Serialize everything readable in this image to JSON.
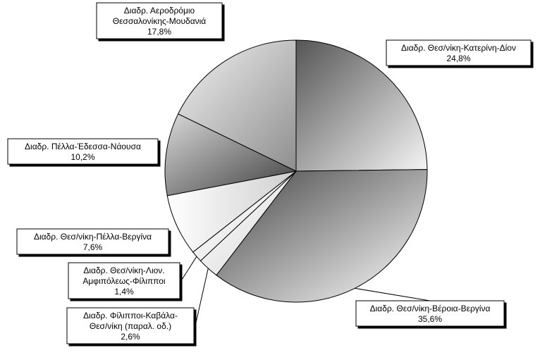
{
  "chart_data": {
    "type": "pie",
    "title": "",
    "slices": [
      {
        "label": "Διαδρ. Θεσ/νίκη-Κατερίνη-Δίον",
        "value": 24.8,
        "value_label": "24,8%"
      },
      {
        "label": "Διαδρ. Θεσ/νίκη-Βέροια-Βεργίνα",
        "value": 35.6,
        "value_label": "35,6%"
      },
      {
        "label": "Διαδρ. Φίλιπποι-Καβάλα-Θεσ/νίκη (παραλ. οδ.)",
        "value": 2.6,
        "value_label": "2,6%"
      },
      {
        "label": "Διαδρ. Θεσ/νίκη-Λιον. Αμφιπόλεως-Φίλιπποι",
        "value": 1.4,
        "value_label": "1,4%"
      },
      {
        "label": "Διαδρ. Θεσ/νίκη-Πέλλα-Βεργίνα",
        "value": 7.6,
        "value_label": "7,6%"
      },
      {
        "label": "Διαδρ. Πέλλα-Έδεσσα-Νάουσα",
        "value": 10.2,
        "value_label": "10,2%"
      },
      {
        "label": "Διαδρ. Αεροδρόμιο Θεσσαλονίκης-Μουδανιά",
        "value": 17.8,
        "value_label": "17,8%"
      }
    ],
    "label_lines": [
      [
        "Διαδρ. Θεσ/νίκη-Κατερίνη-Δίον",
        "24,8%"
      ],
      [
        "Διαδρ. Θεσ/νίκη-Βέροια-Βεργίνα",
        "35,6%"
      ],
      [
        "Διαδρ. Φίλιπποι-Καβάλα-",
        "Θεσ/νίκη (παραλ. οδ.)",
        "2,6%"
      ],
      [
        "Διαδρ. Θεσ/νίκη-Λιον.",
        "Αμφιπόλεως-Φίλιπποι",
        "1,4%"
      ],
      [
        "Διαδρ. Θεσ/νίκη-Πέλλα-Βεργίνα",
        "7,6%"
      ],
      [
        "Διαδρ. Πέλλα-Έδεσσα-Νάουσα",
        "10,2%"
      ],
      [
        "Διαδρ. Αεροδρόμιο",
        "Θεσσαλονίκης-Μουδανιά",
        "17,8%"
      ]
    ],
    "start_angle": "12 o'clock",
    "direction": "clockwise",
    "fill": "grey gradients",
    "legend": "none (data labels with leader lines)"
  }
}
